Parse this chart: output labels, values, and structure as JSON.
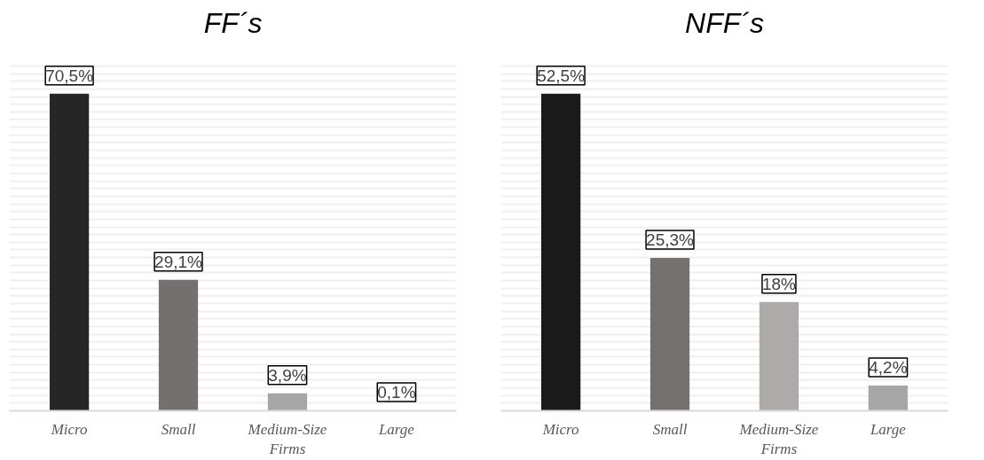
{
  "chart_data": [
    {
      "type": "bar",
      "title": "FF´s",
      "categories": [
        "Micro",
        "Small",
        "Medium-Size Firms",
        "Large"
      ],
      "values": [
        70.5,
        29.1,
        3.9,
        0.1
      ],
      "colors": [
        "#262626",
        "#757070",
        "#a6a6a6",
        "#a6a6a6"
      ],
      "value_labels": [
        "70,5%",
        "29,1%",
        "3,9%",
        "0,1%"
      ],
      "grid": "y",
      "tick_labels": "x"
    },
    {
      "type": "bar",
      "title": "NFF´s",
      "categories": [
        "Micro",
        "Small",
        "Medium-Size Firms",
        "Large"
      ],
      "values": [
        52.5,
        25.3,
        18,
        4.2
      ],
      "colors": [
        "#1a1a1a",
        "#767171",
        "#aeaaaa",
        "#a6a6a6"
      ],
      "value_labels": [
        "52,5%",
        "25,3%",
        "18%",
        "4,2%"
      ],
      "grid": "y",
      "tick_labels": "x"
    }
  ]
}
